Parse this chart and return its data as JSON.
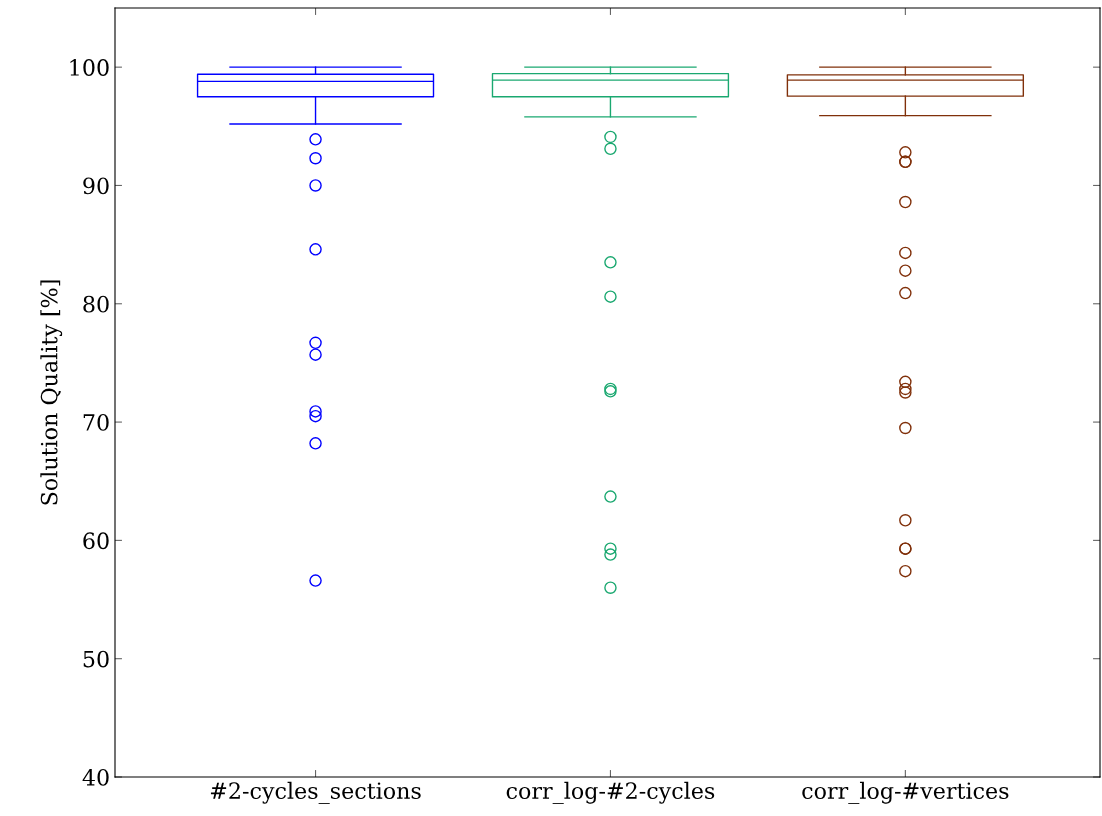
{
  "chart_data": {
    "type": "box",
    "ylabel": "Solution Quality [%]",
    "categories": [
      "#2-cycles_sections",
      "corr_log-#2-cycles",
      "corr_log-#vertices"
    ],
    "ylim": [
      40,
      105
    ],
    "yticks": [
      40,
      50,
      60,
      70,
      80,
      90,
      100
    ],
    "grid": false,
    "marker": "circle",
    "series": [
      {
        "color": "#0000ff",
        "boxes": [
          {
            "low": 95.2,
            "q1": 97.5,
            "median": 98.8,
            "q3": 99.4,
            "high": 100,
            "outliers": [
              93.9,
              92.3,
              90.0,
              84.6,
              76.7,
              75.7,
              70.9,
              70.5,
              68.2,
              56.6
            ]
          },
          null,
          null
        ]
      },
      {
        "color": "#1aa870",
        "boxes": [
          null,
          {
            "low": 95.8,
            "q1": 97.5,
            "median": 98.9,
            "q3": 99.45,
            "high": 100,
            "outliers": [
              94.1,
              93.1,
              83.5,
              80.6,
              72.8,
              72.6,
              63.7,
              59.3,
              58.8,
              56.0
            ]
          },
          null
        ]
      },
      {
        "color": "#80300a",
        "boxes": [
          null,
          null,
          {
            "low": 95.9,
            "q1": 97.55,
            "median": 98.9,
            "q3": 99.35,
            "high": 100,
            "outliers": [
              92.8,
              92.0,
              92.0,
              88.6,
              84.3,
              82.8,
              80.9,
              73.4,
              72.8,
              72.5,
              69.5,
              61.7,
              59.3,
              59.3,
              57.4
            ]
          }
        ]
      }
    ]
  }
}
